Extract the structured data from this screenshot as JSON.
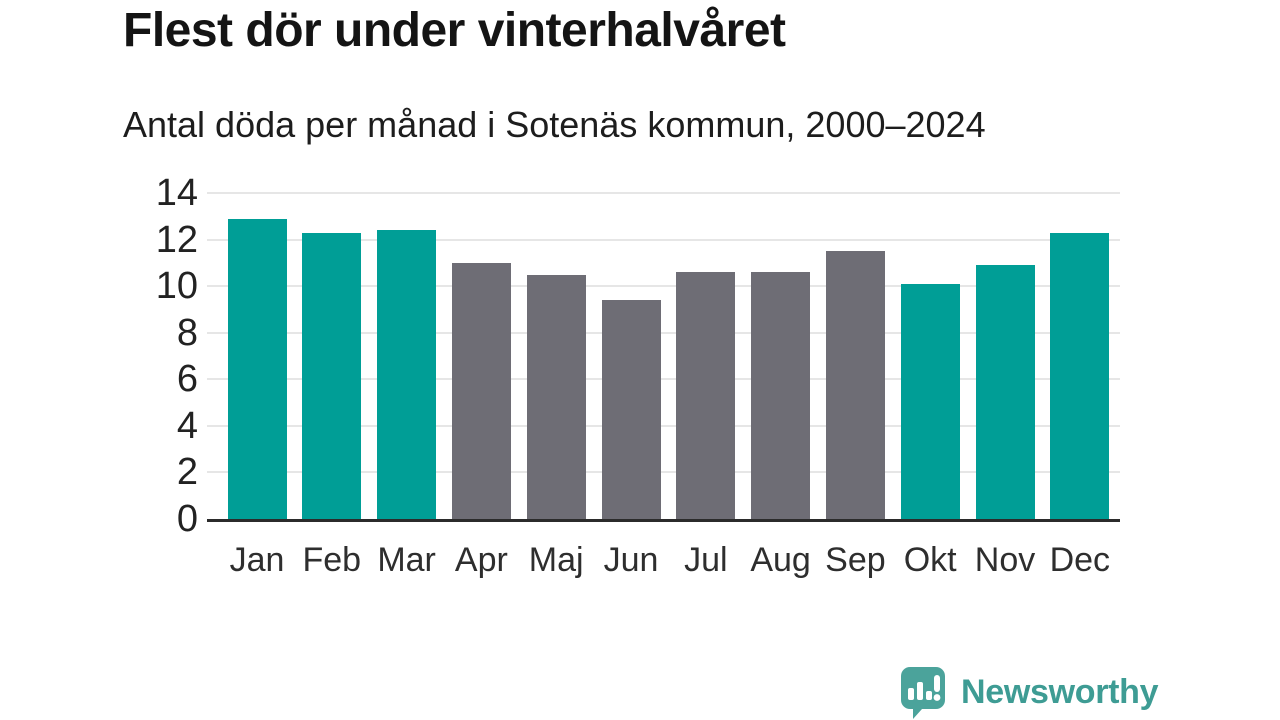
{
  "header": {
    "title": "Flest dör under vinterhalvåret",
    "subtitle": "Antal döda per månad i Sotenäs kommun, 2000–2024"
  },
  "colors": {
    "highlight": "#009e96",
    "muted": "#6e6d75",
    "grid": "#e6e6e6",
    "axis": "#2b2b2b",
    "brand_text": "#3e9c94",
    "brand_icon": "#4ba39b"
  },
  "chart_data": {
    "type": "bar",
    "title": "Flest dör under vinterhalvåret",
    "subtitle": "Antal döda per månad i Sotenäs kommun, 2000–2024",
    "categories": [
      "Jan",
      "Feb",
      "Mar",
      "Apr",
      "Maj",
      "Jun",
      "Jul",
      "Aug",
      "Sep",
      "Okt",
      "Nov",
      "Dec"
    ],
    "values": [
      12.9,
      12.3,
      12.4,
      11.0,
      10.5,
      9.4,
      10.6,
      10.6,
      11.5,
      10.1,
      10.9,
      12.3
    ],
    "highlighted": [
      true,
      true,
      true,
      false,
      false,
      false,
      false,
      false,
      false,
      true,
      true,
      true
    ],
    "xlabel": "",
    "ylabel": "",
    "ylim": [
      0,
      14
    ],
    "yticks": [
      0,
      2,
      4,
      6,
      8,
      10,
      12,
      14
    ],
    "grid": true,
    "legend": "none"
  },
  "footer": {
    "brand_name": "Newsworthy",
    "brand_icon": "bar-chart-speech-bubble-icon"
  }
}
